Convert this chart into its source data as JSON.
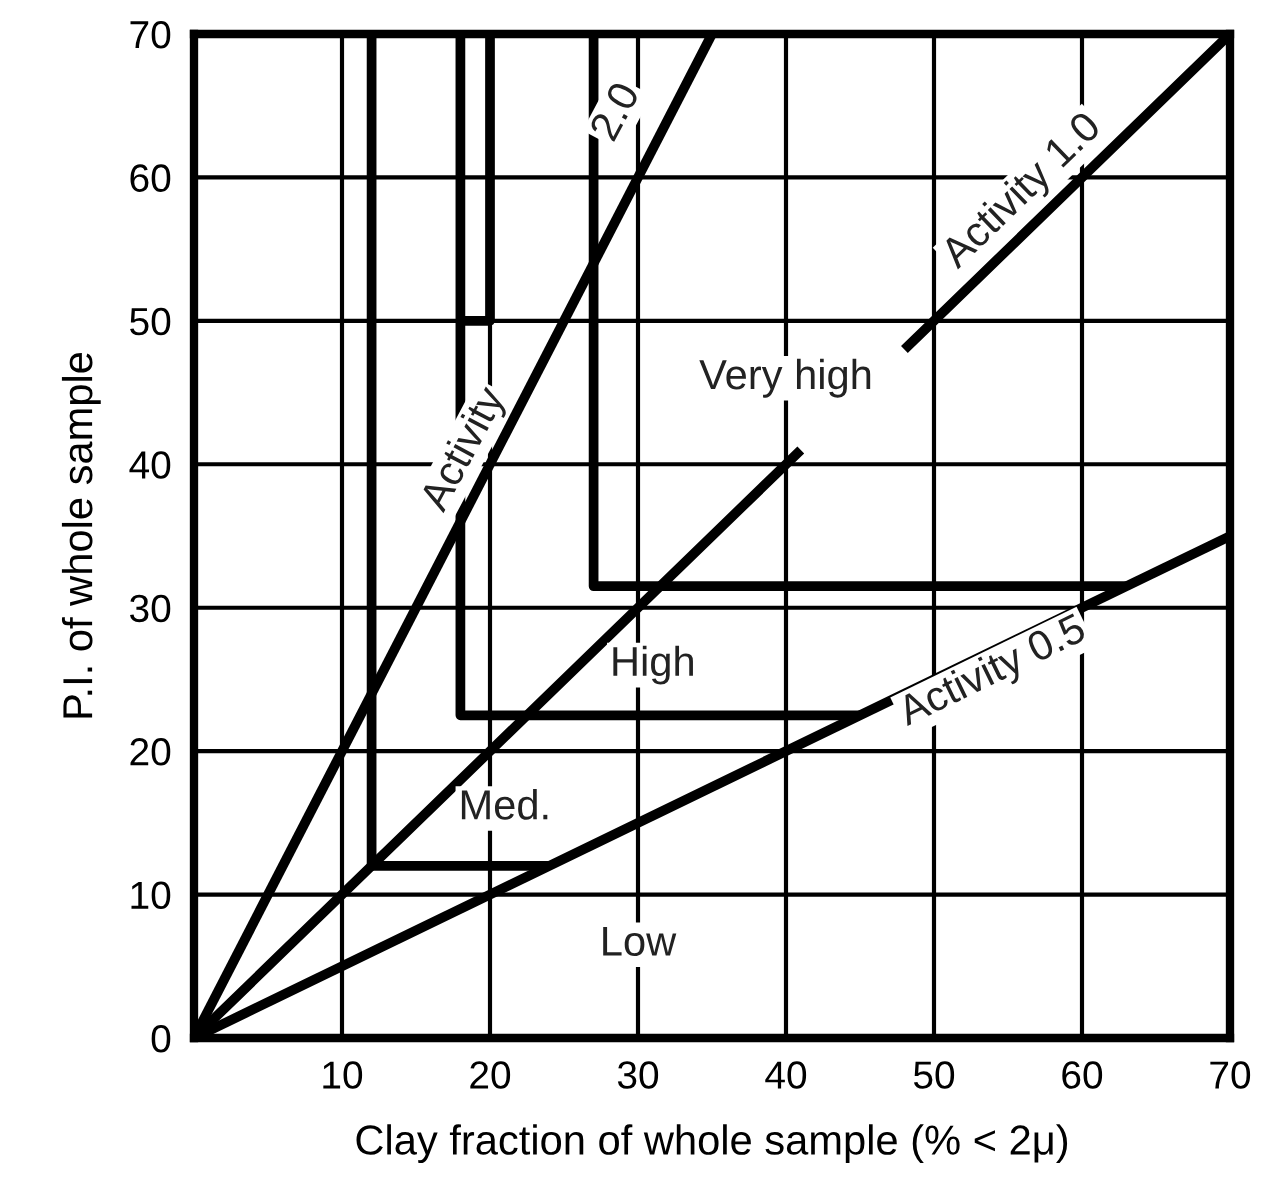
{
  "chart_data": {
    "type": "line",
    "xlabel": "Clay fraction of whole sample (% < 2μ)",
    "ylabel": "P.I. of whole sample",
    "xlim": [
      0,
      70
    ],
    "ylim": [
      0,
      70
    ],
    "xticks": [
      {
        "value": 0,
        "label": null
      },
      10,
      20,
      30,
      40,
      50,
      60,
      70
    ],
    "yticks": [
      0,
      10,
      20,
      30,
      40,
      50,
      60,
      70
    ],
    "grid": true,
    "marker": "none",
    "line_style": "solid",
    "series": [
      {
        "color": "#000000",
        "x": [
          0,
          35
        ],
        "values": [
          0,
          70
        ]
      },
      {
        "color": "#000000",
        "x": [
          0,
          41,
          44,
          48,
          70
        ],
        "values": [
          0,
          41,
          null,
          48,
          70
        ]
      },
      {
        "color": "#000000",
        "x": [
          0,
          70
        ],
        "values": [
          0,
          35
        ]
      },
      {
        "color": "#000000",
        "x": [
          12,
          12,
          24
        ],
        "values": [
          70,
          12,
          12
        ]
      },
      {
        "color": "#000000",
        "x": [
          18,
          18,
          45
        ],
        "values": [
          70,
          22.5,
          22.5
        ]
      },
      {
        "color": "#000000",
        "x": [
          27,
          27,
          63
        ],
        "values": [
          70,
          31.5,
          31.5
        ]
      },
      {
        "color": "#000000",
        "x": [
          18,
          20,
          20
        ],
        "values": [
          50,
          50,
          70
        ]
      }
    ],
    "annotations": [
      "Activity",
      "2.0",
      "Activity 1.0",
      "Activity 0.5",
      "Very high",
      "High",
      "Med.",
      "Low"
    ]
  }
}
